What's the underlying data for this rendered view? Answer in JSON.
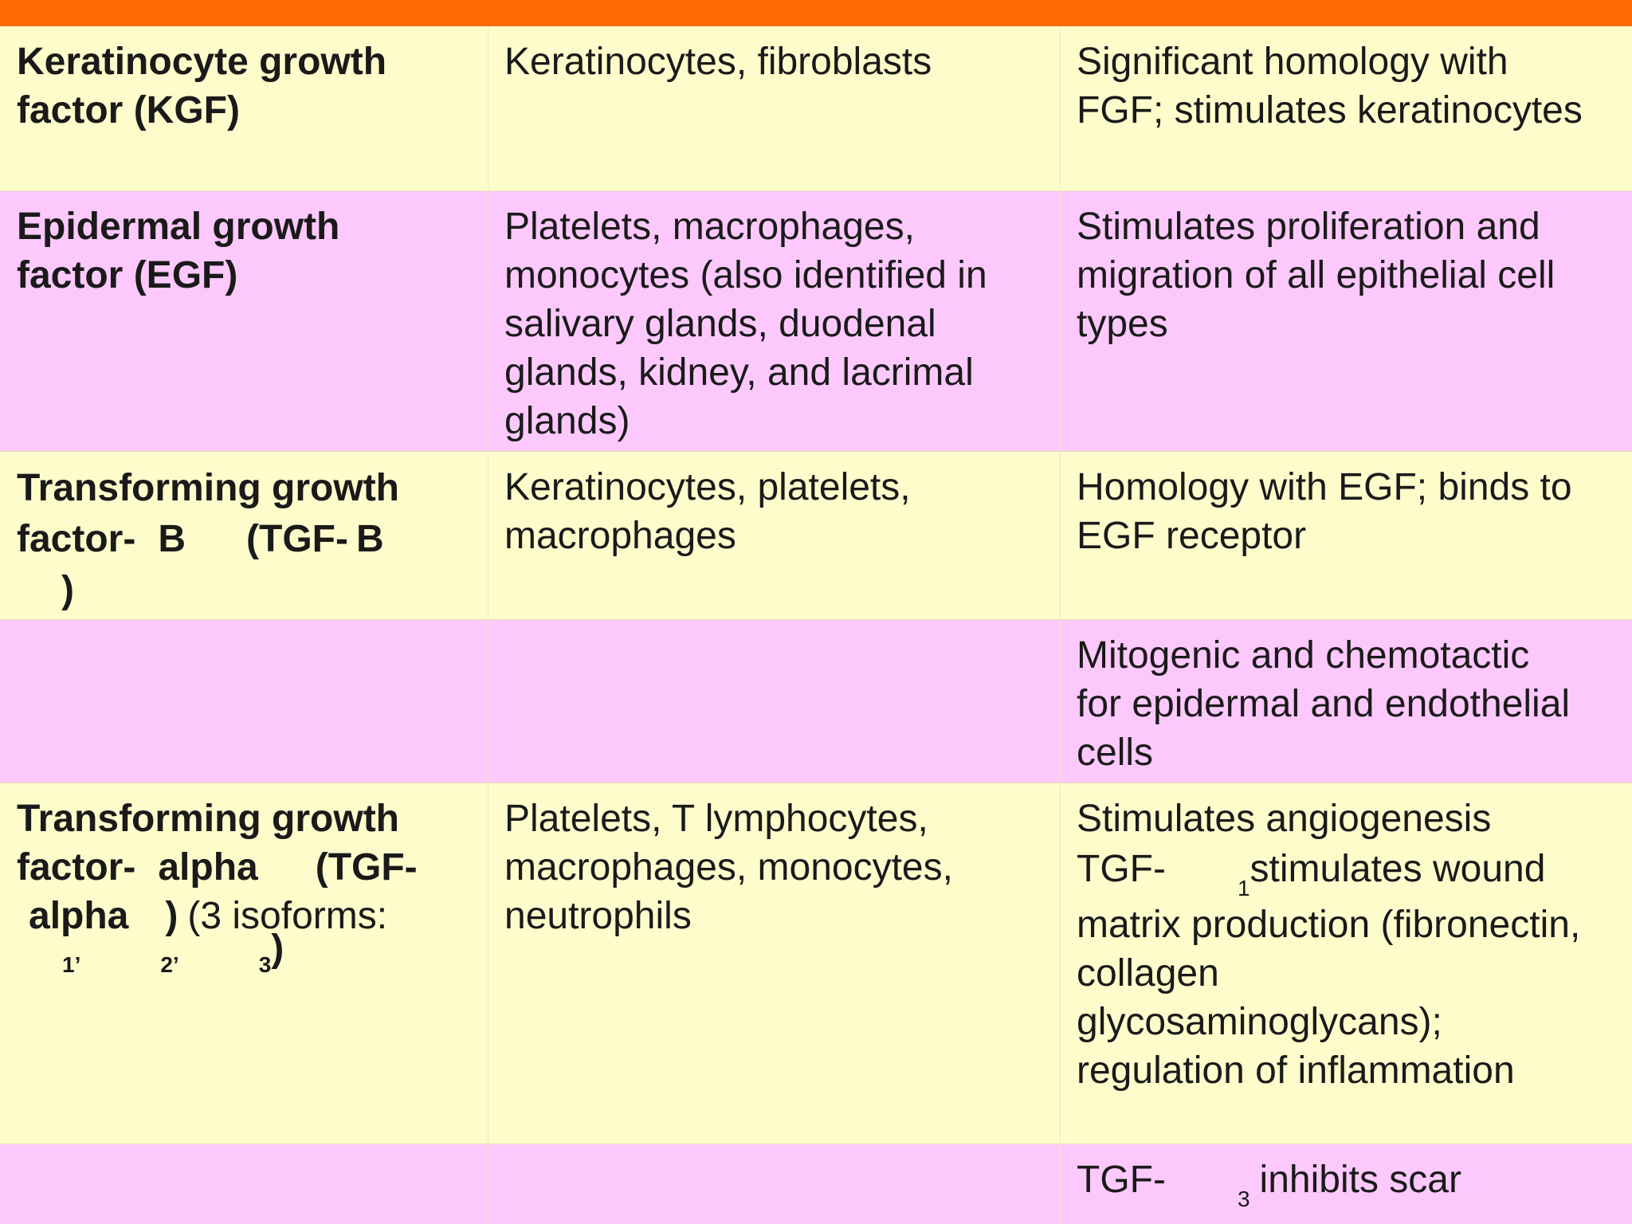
{
  "rows": [
    {
      "col1": [
        "Keratinocyte growth",
        "factor (KGF)"
      ],
      "col2": [
        "Keratinocytes, fibroblasts"
      ],
      "col3": [
        "Significant homology with",
        "FGF; stimulates keratinocytes"
      ]
    },
    {
      "col1": [
        "Epidermal growth",
        "factor (EGF)"
      ],
      "col2": [
        "Platelets, macrophages,",
        "monocytes (also identified in",
        "salivary glands, duodenal",
        "glands, kidney, and lacrimal",
        "glands)"
      ],
      "col3": [
        "Stimulates proliferation and",
        "migration of all epithelial cell",
        "types"
      ]
    },
    {
      "col1_parts": {
        "line1": "Transforming growth",
        "line2a": "factor-",
        "line2b": "B",
        "line2c": "(TGF-",
        "line2d": "B",
        "line3": ")"
      },
      "col2": [
        "Keratinocytes, platelets,",
        "macrophages"
      ],
      "col3": [
        "Homology with EGF; binds to",
        "EGF receptor"
      ]
    },
    {
      "col1": [],
      "col2": [],
      "col3": [
        "Mitogenic and chemotactic",
        "for epidermal and endothelial",
        "cells"
      ]
    },
    {
      "col1_parts": {
        "line1": "Transforming growth",
        "line2a": "factor-",
        "line2b": "alpha",
        "line2c": "(TGF-",
        "line3a": "alpha",
        "line3b": ")",
        "line3c": "(3 isoforms:",
        "sub1": "1’",
        "sub2": "2’",
        "sub3": "3",
        "close": ")"
      },
      "col2": [
        "Platelets, T lymphocytes,",
        "macrophages, monocytes,",
        "neutrophils"
      ],
      "col3_parts": {
        "line1": "Stimulates angiogenesis",
        "line2a": "TGF-",
        "line2sub": "1",
        "line2b": "stimulates wound",
        "line3": "matrix production (fibronectin,",
        "line4": "collagen",
        "line5": "glycosaminoglycans);",
        "line6": "regulation of inflammation"
      }
    },
    {
      "col1": [],
      "col2": [],
      "col3_parts": {
        "line1a": "TGF-",
        "line1sub": "3",
        "line1b": "inhibits scar"
      }
    }
  ]
}
